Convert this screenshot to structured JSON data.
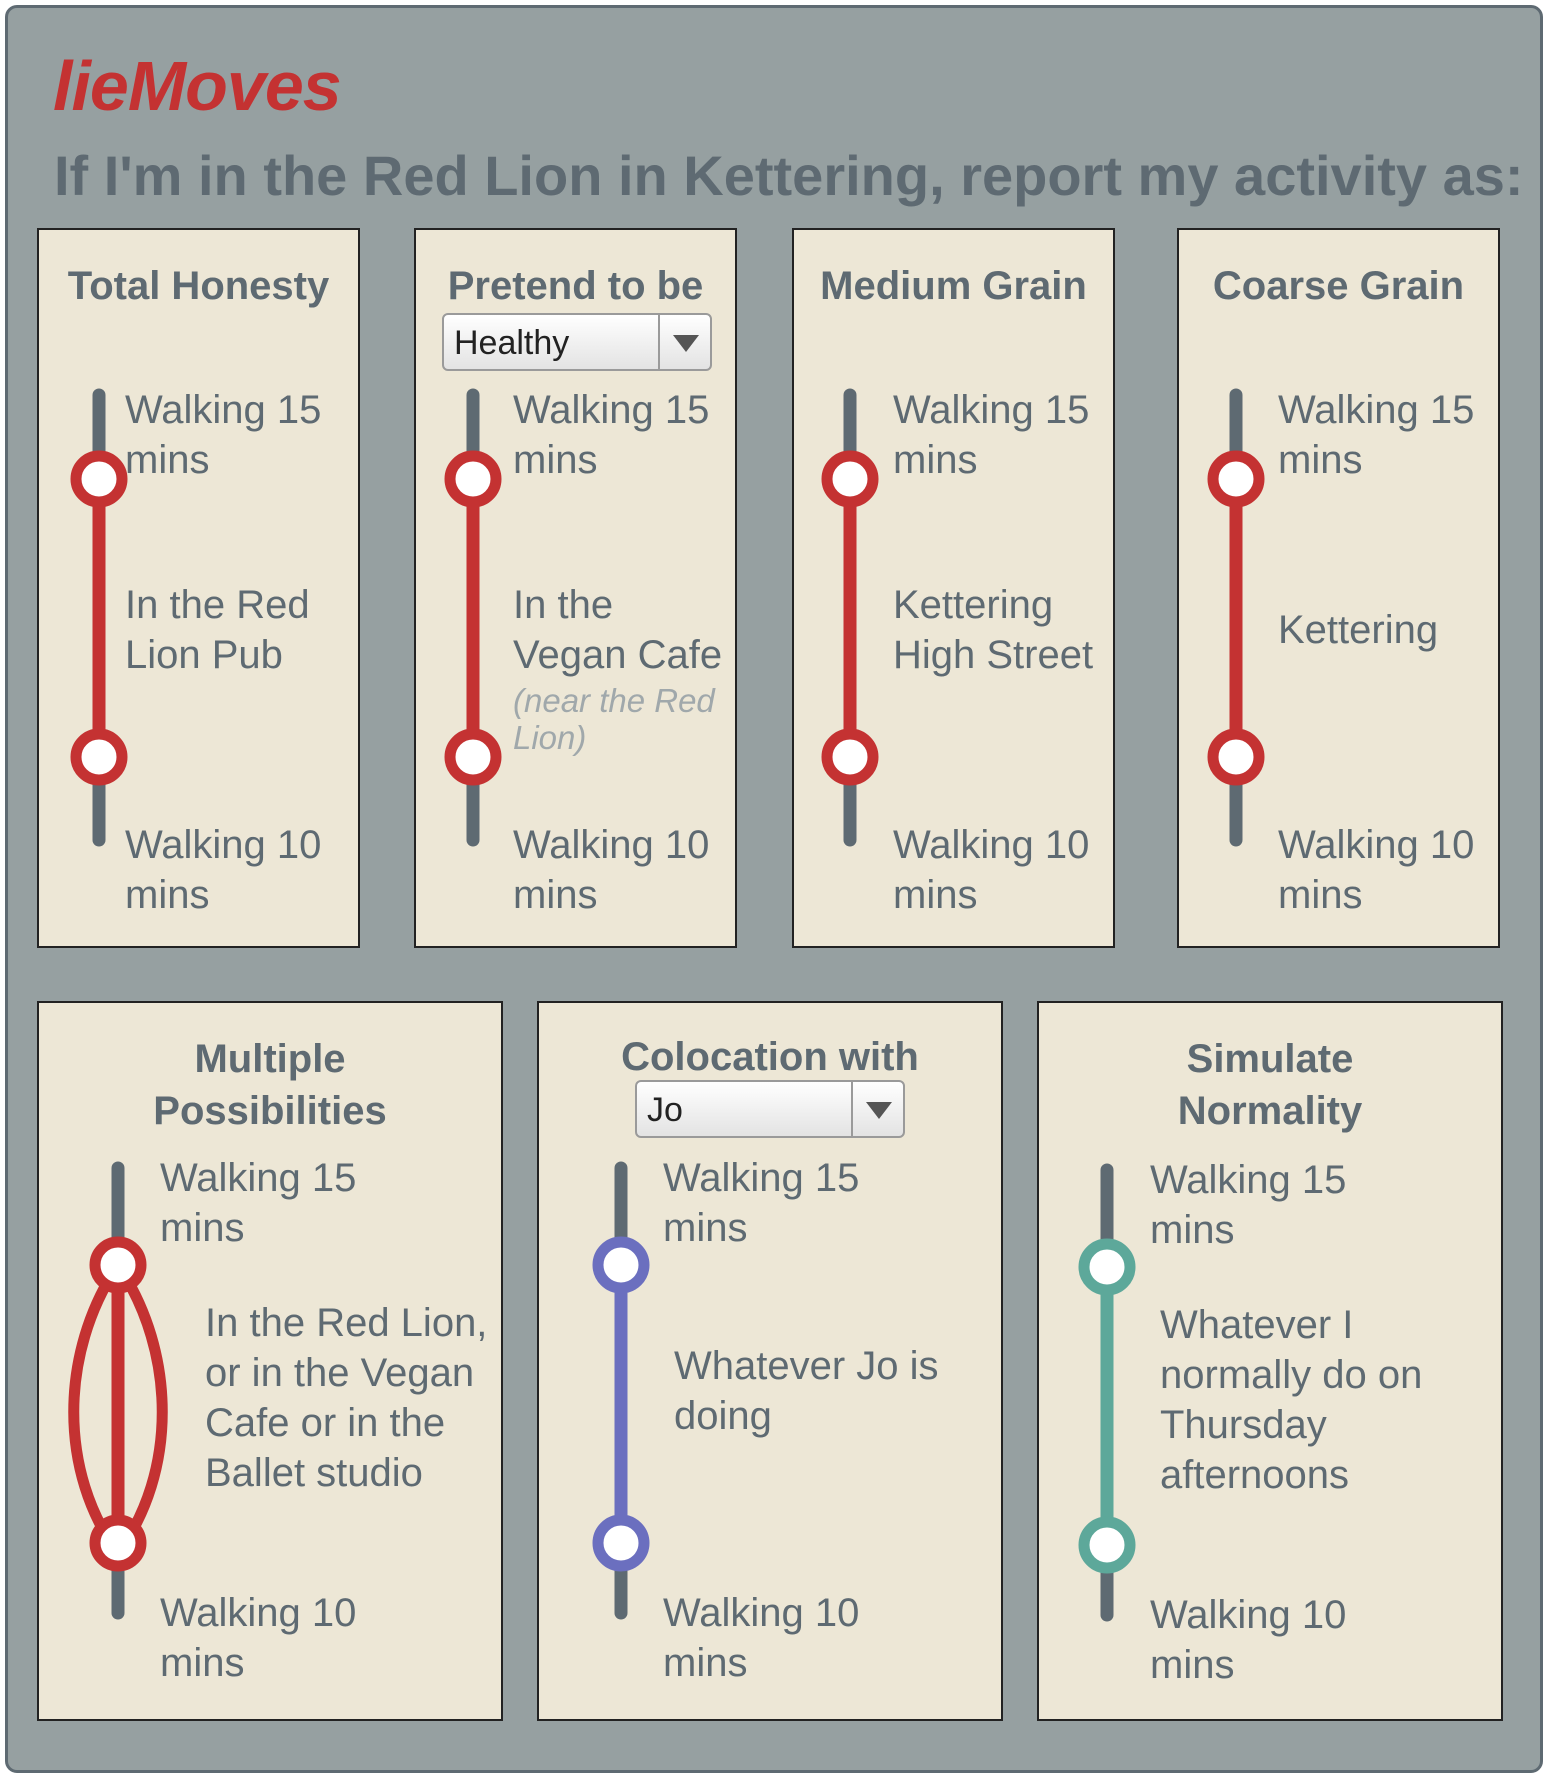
{
  "app": {
    "title": "lieMoves",
    "headline": "If I'm in the Red Lion in Kettering, report my activity as:"
  },
  "colors": {
    "frame": "#96a0a1",
    "card": "#ede7d6",
    "text": "#5e6a72",
    "track": "#5e6a72",
    "red": "#c43232",
    "purple": "#6b6fbf",
    "teal": "#5da89a"
  },
  "cards": [
    {
      "title": "Total Honesty",
      "top": [
        "Walking 15",
        "mins"
      ],
      "middle": [
        "In the Red",
        "Lion Pub"
      ],
      "bottom": [
        "Walking 10",
        "mins"
      ]
    },
    {
      "title": "Pretend to be",
      "select": {
        "value": "Healthy",
        "icon": "chevron-down-icon"
      },
      "top": [
        "Walking 15",
        "mins"
      ],
      "middle": [
        "In the",
        "Vegan Cafe"
      ],
      "note": [
        "(near the Red",
        "Lion)"
      ],
      "bottom": [
        "Walking 10",
        "mins"
      ]
    },
    {
      "title": "Medium Grain",
      "top": [
        "Walking 15",
        "mins"
      ],
      "middle": [
        "Kettering",
        "High Street"
      ],
      "bottom": [
        "Walking 10",
        "mins"
      ]
    },
    {
      "title": "Coarse Grain",
      "top": [
        "Walking 15",
        "mins"
      ],
      "middle": [
        "Kettering"
      ],
      "bottom": [
        "Walking 10",
        "mins"
      ]
    },
    {
      "title": [
        "Multiple",
        "Possibilities"
      ],
      "top": [
        "Walking 15",
        "mins"
      ],
      "middle": [
        "In the Red Lion,",
        "or in the Vegan",
        "Cafe or in the",
        "Ballet studio"
      ],
      "bottom": [
        "Walking 10",
        "mins"
      ]
    },
    {
      "title": "Colocation with",
      "select": {
        "value": "Jo",
        "icon": "chevron-down-icon"
      },
      "top": [
        "Walking 15",
        "mins"
      ],
      "middle": [
        "Whatever Jo is",
        "doing"
      ],
      "bottom": [
        "Walking 10",
        "mins"
      ]
    },
    {
      "title": [
        "Simulate",
        "Normality"
      ],
      "top": [
        "Walking 15",
        "mins"
      ],
      "middle": [
        "Whatever I",
        "normally do on",
        "Thursday",
        "afternoons"
      ],
      "bottom": [
        "Walking 10",
        "mins"
      ]
    }
  ]
}
